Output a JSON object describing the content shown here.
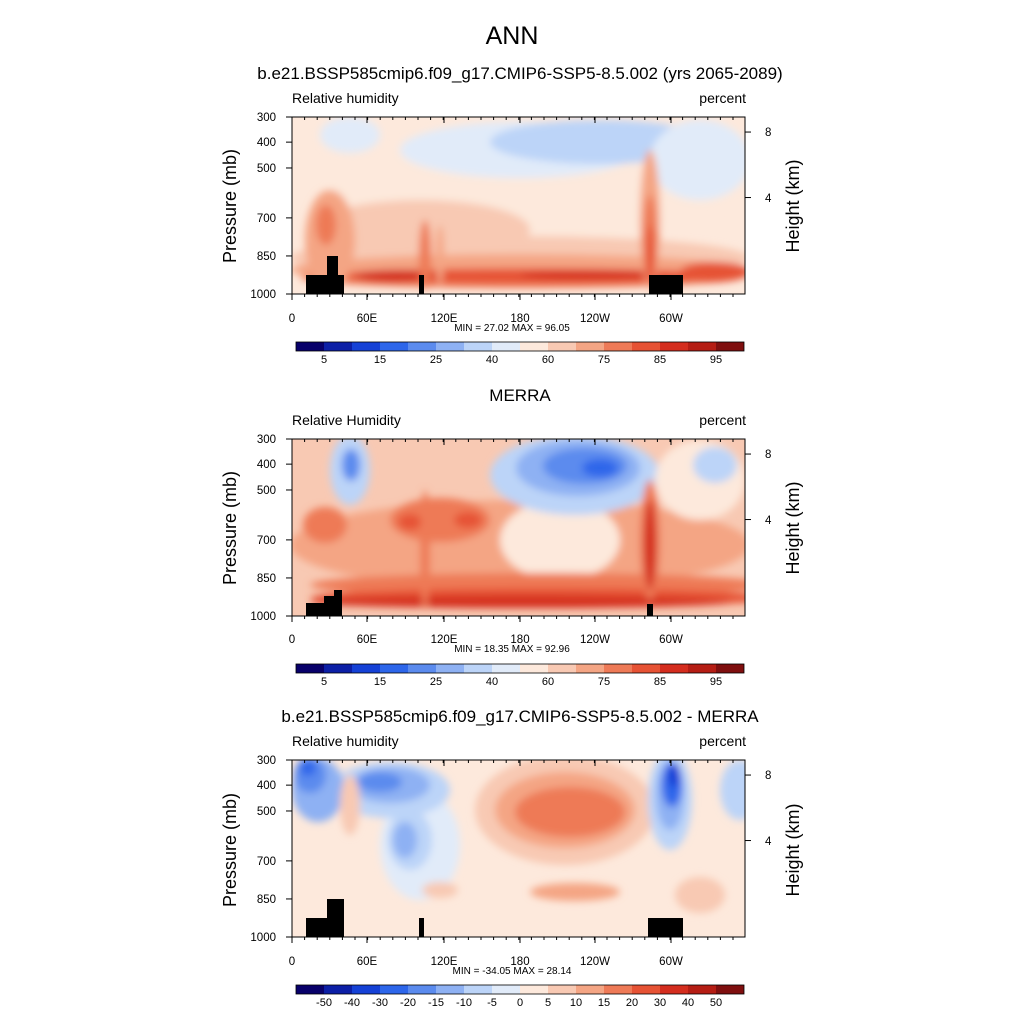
{
  "figure": {
    "title": "ANN"
  },
  "colors": {
    "levels": [
      "#08006a",
      "#0c1fa6",
      "#1541d6",
      "#2d66ea",
      "#5b8bee",
      "#8eb1f3",
      "#bcd4f8",
      "#e1ebf9",
      "#fde9dc",
      "#f8c9b3",
      "#f4a584",
      "#ee7a57",
      "#e65234",
      "#d42d1e",
      "#b51d14",
      "#7f0f0f"
    ],
    "land": "#000000"
  },
  "chart_data": [
    {
      "type": "contour",
      "title": "b.e21.BSSP585cmip6.f09_g17.CMIP6-SSP5-8.5.002 (yrs 2065-2089)",
      "left_label": "Relative humidity",
      "right_label": "percent",
      "ylabel": "Pressure (mb)",
      "y2label": "Height (km)",
      "x_ticks": [
        "0",
        "60E",
        "120E",
        "180",
        "120W",
        "60W"
      ],
      "y_ticks": [
        "300",
        "400",
        "500",
        "700",
        "850",
        "1000"
      ],
      "y2_ticks": [
        "8",
        "4"
      ],
      "min": "27.02",
      "max": "96.05",
      "stats_text": "MIN =  27.02  MAX =  96.05",
      "colorbar_labels": [
        "5",
        "15",
        "25",
        "40",
        "60",
        "75",
        "85",
        "95"
      ]
    },
    {
      "type": "contour",
      "title": "MERRA",
      "left_label": "Relative Humidity",
      "right_label": "percent",
      "ylabel": "Pressure (mb)",
      "y2label": "Height (km)",
      "x_ticks": [
        "0",
        "60E",
        "120E",
        "180",
        "120W",
        "60W"
      ],
      "y_ticks": [
        "300",
        "400",
        "500",
        "700",
        "850",
        "1000"
      ],
      "y2_ticks": [
        "8",
        "4"
      ],
      "min": "18.35",
      "max": "92.96",
      "stats_text": "MIN =  18.35  MAX =  92.96",
      "colorbar_labels": [
        "5",
        "15",
        "25",
        "40",
        "60",
        "75",
        "85",
        "95"
      ]
    },
    {
      "type": "contour",
      "title": "b.e21.BSSP585cmip6.f09_g17.CMIP6-SSP5-8.5.002 - MERRA",
      "left_label": "Relative humidity",
      "right_label": "percent",
      "ylabel": "Pressure (mb)",
      "y2label": "Height (km)",
      "x_ticks": [
        "0",
        "60E",
        "120E",
        "180",
        "120W",
        "60W"
      ],
      "y_ticks": [
        "300",
        "400",
        "500",
        "700",
        "850",
        "1000"
      ],
      "y2_ticks": [
        "8",
        "4"
      ],
      "min": "-34.05",
      "max": "28.14",
      "stats_text": "MIN = -34.05  MAX =  28.14",
      "colorbar_labels": [
        "-50",
        "-40",
        "-30",
        "-20",
        "-15",
        "-10",
        "-5",
        "0",
        "5",
        "10",
        "15",
        "20",
        "30",
        "40",
        "50"
      ]
    }
  ]
}
